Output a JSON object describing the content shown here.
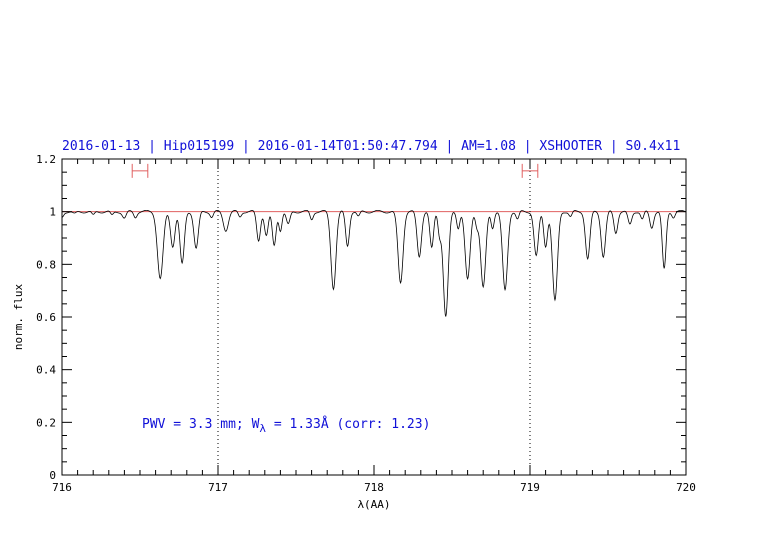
{
  "chart_data": {
    "type": "line",
    "title": "2016-01-13 | Hip015199 | 2016-01-14T01:50:47.794 | AM=1.08 | XSHOOTER | S0.4x11",
    "xlabel": "λ(AA)",
    "ylabel": "norm. flux",
    "xlim": [
      716,
      720
    ],
    "ylim": [
      0,
      1.2
    ],
    "x_ticks": [
      "716",
      "717",
      "718",
      "719",
      "720"
    ],
    "y_ticks": [
      "0",
      "0.2",
      "0.4",
      "0.6",
      "0.8",
      "1",
      "1.2"
    ],
    "x_tick_values": [
      716,
      717,
      718,
      719,
      720
    ],
    "y_tick_values": [
      0,
      0.2,
      0.4,
      0.6,
      0.8,
      1.0,
      1.2
    ],
    "continuum_level": 1.0,
    "continuum_color": "#e06060",
    "vertical_markers": [
      717.0,
      719.0
    ],
    "continuum_windows": [
      {
        "x1": 716.45,
        "x2": 716.55,
        "y": 1.155
      },
      {
        "x1": 718.95,
        "x2": 719.05,
        "y": 1.155
      }
    ],
    "annotation": "PWV = 3.3 mm; W_λ = 1.33Å (corr: 1.23)",
    "annotation_parts": {
      "prefix": "PWV = 3.3 mm; W",
      "subscript": "λ",
      "suffix": " = 1.33Å (corr: 1.23)"
    },
    "grid": false,
    "continuum_params": {
      "c": 1.0,
      "amp": 0.005,
      "freq": 55
    },
    "absorption_lines": [
      [
        716.0,
        0.02,
        0.01
      ],
      [
        716.08,
        0.01,
        0.012
      ],
      [
        716.2,
        0.015,
        0.01
      ],
      [
        716.32,
        0.015,
        0.01
      ],
      [
        716.4,
        0.025,
        0.012
      ],
      [
        716.47,
        0.02,
        0.01
      ],
      [
        716.63,
        0.255,
        0.018
      ],
      [
        716.71,
        0.13,
        0.014
      ],
      [
        716.77,
        0.2,
        0.014
      ],
      [
        716.86,
        0.14,
        0.014
      ],
      [
        716.96,
        0.02,
        0.01
      ],
      [
        717.05,
        0.07,
        0.016
      ],
      [
        717.14,
        0.02,
        0.01
      ],
      [
        717.26,
        0.11,
        0.012
      ],
      [
        717.31,
        0.09,
        0.012
      ],
      [
        717.36,
        0.13,
        0.012
      ],
      [
        717.4,
        0.07,
        0.01
      ],
      [
        717.45,
        0.05,
        0.012
      ],
      [
        717.6,
        0.03,
        0.01
      ],
      [
        717.74,
        0.29,
        0.016
      ],
      [
        717.83,
        0.13,
        0.012
      ],
      [
        717.9,
        0.02,
        0.01
      ],
      [
        718.17,
        0.27,
        0.016
      ],
      [
        718.29,
        0.17,
        0.014
      ],
      [
        718.37,
        0.14,
        0.012
      ],
      [
        718.42,
        0.08,
        0.01
      ],
      [
        718.46,
        0.4,
        0.016
      ],
      [
        718.54,
        0.06,
        0.01
      ],
      [
        718.6,
        0.26,
        0.016
      ],
      [
        718.66,
        0.05,
        0.01
      ],
      [
        718.7,
        0.29,
        0.016
      ],
      [
        718.76,
        0.06,
        0.01
      ],
      [
        718.84,
        0.3,
        0.016
      ],
      [
        718.92,
        0.03,
        0.01
      ],
      [
        719.04,
        0.17,
        0.014
      ],
      [
        719.1,
        0.13,
        0.012
      ],
      [
        719.16,
        0.34,
        0.016
      ],
      [
        719.26,
        0.02,
        0.01
      ],
      [
        719.37,
        0.18,
        0.014
      ],
      [
        719.47,
        0.17,
        0.014
      ],
      [
        719.55,
        0.08,
        0.012
      ],
      [
        719.64,
        0.05,
        0.012
      ],
      [
        719.72,
        0.03,
        0.01
      ],
      [
        719.78,
        0.06,
        0.012
      ],
      [
        719.86,
        0.22,
        0.012
      ],
      [
        719.92,
        0.02,
        0.01
      ]
    ]
  }
}
